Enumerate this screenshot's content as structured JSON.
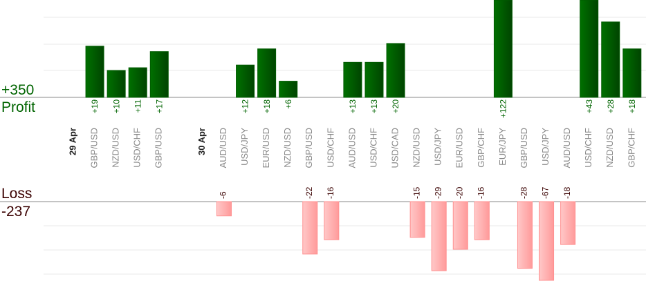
{
  "chart_data": {
    "type": "bar",
    "title": "",
    "profit_label": "Profit",
    "profit_total": "+350",
    "loss_label": "Loss",
    "loss_total": "-237",
    "columns": [
      {
        "kind": "date",
        "label": "29 Apr"
      },
      {
        "kind": "trade",
        "label": "GBP/USD",
        "value": 19
      },
      {
        "kind": "trade",
        "label": "NZD/USD",
        "value": 10
      },
      {
        "kind": "trade",
        "label": "USD/CHF",
        "value": 11
      },
      {
        "kind": "trade",
        "label": "GBP/USD",
        "value": 17
      },
      {
        "kind": "blank"
      },
      {
        "kind": "date",
        "label": "30 Apr"
      },
      {
        "kind": "trade",
        "label": "AUD/USD",
        "value": -6
      },
      {
        "kind": "trade",
        "label": "USD/JPY",
        "value": 12
      },
      {
        "kind": "trade",
        "label": "EUR/USD",
        "value": 18
      },
      {
        "kind": "trade",
        "label": "NZD/USD",
        "value": 6
      },
      {
        "kind": "trade",
        "label": "GBP/USD",
        "value": -22
      },
      {
        "kind": "trade",
        "label": "USD/CHF",
        "value": -16
      },
      {
        "kind": "trade",
        "label": "AUD/USD",
        "value": 13
      },
      {
        "kind": "trade",
        "label": "USD/CHF",
        "value": 13
      },
      {
        "kind": "trade",
        "label": "USD/CAD",
        "value": 20
      },
      {
        "kind": "trade",
        "label": "NZD/USD",
        "value": -15
      },
      {
        "kind": "trade",
        "label": "USD/JPY",
        "value": -29
      },
      {
        "kind": "trade",
        "label": "EUR/USD",
        "value": -20
      },
      {
        "kind": "trade",
        "label": "GBP/CHF",
        "value": -16
      },
      {
        "kind": "trade",
        "label": "EUR/JPY",
        "value": 122
      },
      {
        "kind": "trade",
        "label": "GBP/USD",
        "value": -28
      },
      {
        "kind": "trade",
        "label": "USD/JPY",
        "value": -67
      },
      {
        "kind": "trade",
        "label": "AUD/USD",
        "value": -18
      },
      {
        "kind": "trade",
        "label": "USD/CHF",
        "value": 43
      },
      {
        "kind": "trade",
        "label": "NZD/USD",
        "value": 28
      },
      {
        "kind": "trade",
        "label": "GBP/CHF",
        "value": 18
      }
    ],
    "colors": {
      "profit": "#006400",
      "profit_dark": "#004a00",
      "loss": "#ff9999",
      "loss_light": "#ffc8c8",
      "loss_text": "#3a0000",
      "pair_text": "#888888"
    }
  }
}
